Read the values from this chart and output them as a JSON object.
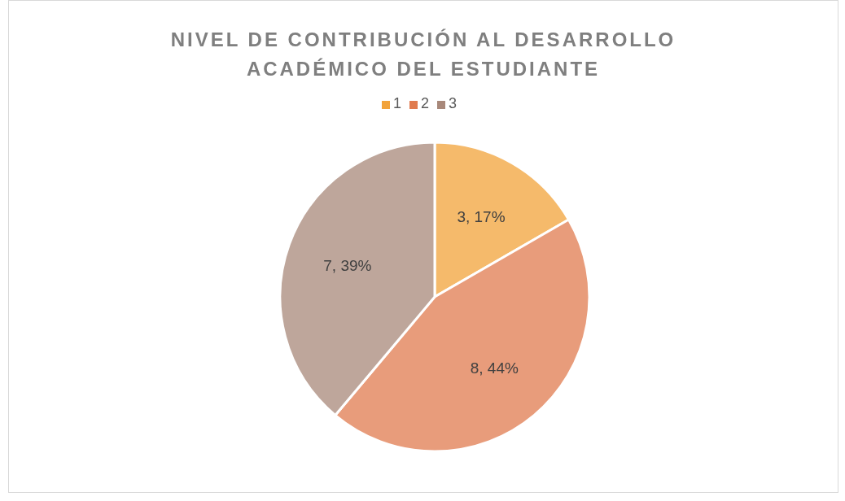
{
  "chart_data": {
    "type": "pie",
    "title": "NIVEL DE CONTRIBUCIÓN AL DESARROLLO ACADÉMICO DEL ESTUDIANTE",
    "categories": [
      "1",
      "2",
      "3"
    ],
    "values": [
      3,
      8,
      7
    ],
    "colors": [
      "#f2a33a",
      "#e07b4f",
      "#a8887a"
    ],
    "value_labels": [
      "3, 17%",
      "8, 44%",
      "7, 39%"
    ],
    "legend": "top"
  }
}
